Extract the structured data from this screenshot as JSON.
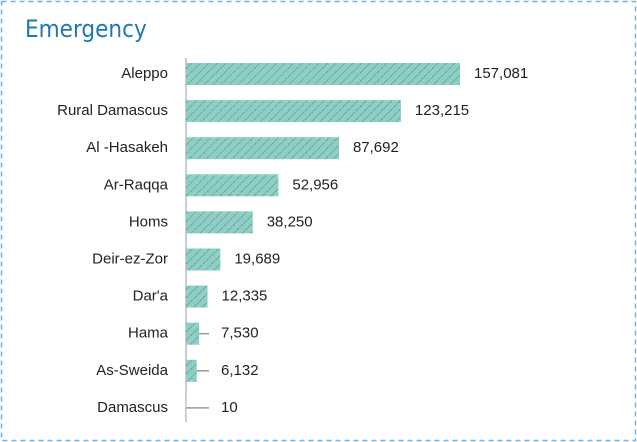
{
  "chart_data": {
    "type": "bar",
    "orientation": "horizontal",
    "title": "Emergency",
    "categories": [
      "Aleppo",
      "Rural Damascus",
      "Al -Hasakeh",
      "Ar-Raqqa",
      "Homs",
      "Deir-ez-Zor",
      "Dar'a",
      "Hama",
      "As-Sweida",
      "Damascus"
    ],
    "values": [
      157081,
      123215,
      87692,
      52956,
      38250,
      19689,
      12335,
      7530,
      6132,
      10
    ],
    "value_labels": [
      "157,081",
      "123,215",
      "87,692",
      "52,956",
      "38,250",
      "19,689",
      "12,335",
      "7,530",
      "6,132",
      "10"
    ],
    "color": "#8ecfc5"
  }
}
